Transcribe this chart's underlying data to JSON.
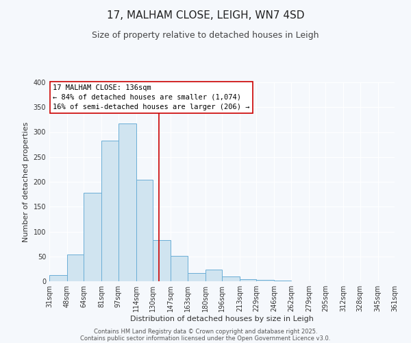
{
  "title": "17, MALHAM CLOSE, LEIGH, WN7 4SD",
  "subtitle": "Size of property relative to detached houses in Leigh",
  "xlabel": "Distribution of detached houses by size in Leigh",
  "ylabel": "Number of detached properties",
  "bins": [
    31,
    48,
    64,
    81,
    97,
    114,
    130,
    147,
    163,
    180,
    196,
    213,
    229,
    246,
    262,
    279,
    295,
    312,
    328,
    345,
    361
  ],
  "counts": [
    13,
    54,
    178,
    283,
    317,
    204,
    83,
    51,
    16,
    24,
    9,
    4,
    3,
    1,
    0,
    0,
    0,
    0,
    0,
    0
  ],
  "bar_facecolor": "#d0e4f0",
  "bar_edgecolor": "#6baed6",
  "vline_x": 136,
  "vline_color": "#cc0000",
  "annotation_title": "17 MALHAM CLOSE: 136sqm",
  "annotation_line1": "← 84% of detached houses are smaller (1,074)",
  "annotation_line2": "16% of semi-detached houses are larger (206) →",
  "annotation_box_edgecolor": "#cc0000",
  "annotation_box_facecolor": "#ffffff",
  "ylim": [
    0,
    400
  ],
  "yticks": [
    0,
    50,
    100,
    150,
    200,
    250,
    300,
    350,
    400
  ],
  "background_color": "#f5f8fc",
  "grid_color": "#ffffff",
  "footer1": "Contains HM Land Registry data © Crown copyright and database right 2025.",
  "footer2": "Contains public sector information licensed under the Open Government Licence v3.0.",
  "title_fontsize": 11,
  "subtitle_fontsize": 9,
  "axis_label_fontsize": 8,
  "tick_fontsize": 7,
  "annotation_fontsize": 7.5,
  "footer_fontsize": 6
}
